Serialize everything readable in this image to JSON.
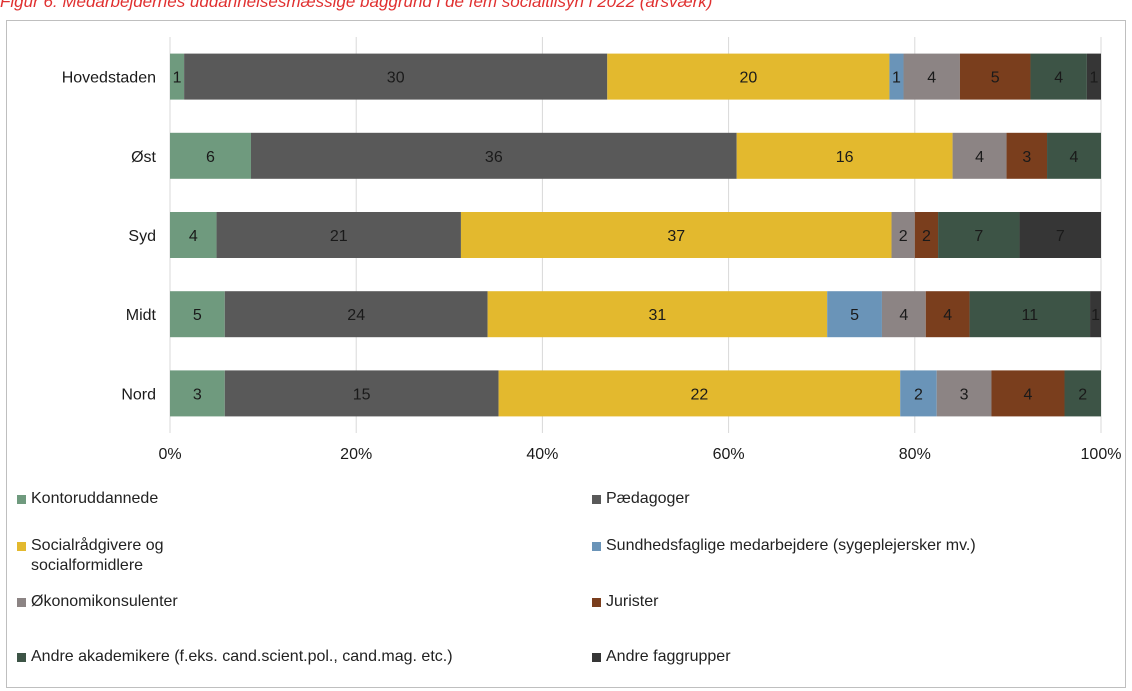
{
  "caption": "Figur 6: Medarbejdernes uddannelsesmæssige baggrund i de fem socialtilsyn i 2022 (årsværk)",
  "chart_data": {
    "type": "bar",
    "orientation": "horizontal",
    "stacked": "percent",
    "categories": [
      "Hovedstaden",
      "Øst",
      "Syd",
      "Midt",
      "Nord"
    ],
    "series": [
      {
        "name": "Kontoruddannede",
        "color": "#6f9a7e",
        "values": [
          1,
          6,
          4,
          5,
          3
        ]
      },
      {
        "name": "Pædagoger",
        "color": "#595959",
        "values": [
          30,
          36,
          21,
          24,
          15
        ]
      },
      {
        "name": "Socialrådgivere og socialformidlere",
        "color": "#e3b92e",
        "values": [
          20,
          16,
          37,
          31,
          22
        ]
      },
      {
        "name": "Sundhedsfaglige medarbejdere (sygeplejersker mv.)",
        "color": "#6a94b8",
        "values": [
          1,
          0,
          0,
          5,
          2
        ]
      },
      {
        "name": "Økonomikonsulenter",
        "color": "#8c8484",
        "values": [
          4,
          4,
          2,
          4,
          3
        ]
      },
      {
        "name": "Jurister",
        "color": "#7a3e1d",
        "values": [
          5,
          3,
          2,
          4,
          4
        ]
      },
      {
        "name": "Andre akademikere (f.eks. cand.scient.pol., cand.mag. etc.)",
        "color": "#3d5446",
        "values": [
          4,
          4,
          7,
          11,
          2
        ]
      },
      {
        "name": "Andre faggrupper",
        "color": "#363636",
        "values": [
          1,
          0,
          7,
          1,
          0
        ]
      }
    ],
    "x_ticks": [
      "0%",
      "20%",
      "40%",
      "60%",
      "80%",
      "100%"
    ],
    "xlim": [
      0,
      100
    ],
    "grid": true,
    "legend_position": "bottom"
  }
}
